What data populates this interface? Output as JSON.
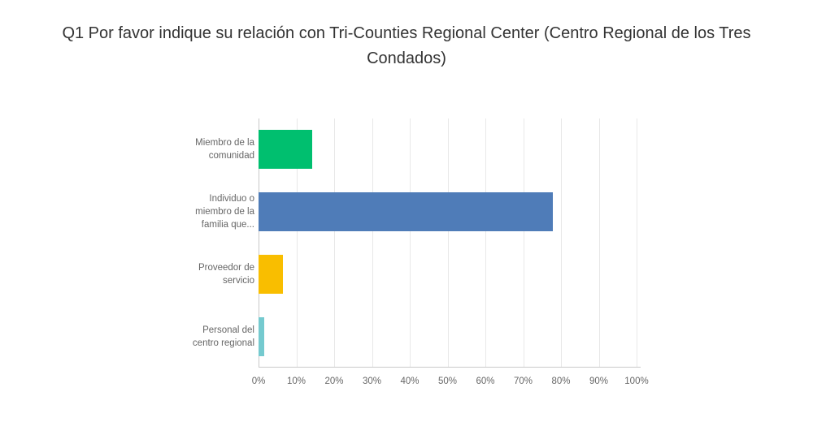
{
  "header": {
    "title": "Q1 Por favor indique su relación con Tri-Counties Regional Center (Centro Regional de los Tres Condados)"
  },
  "colors": {
    "background": "#ffffff",
    "title_text": "#333333",
    "label_text": "#666666",
    "tick_text": "#666666",
    "gridline": "#e8e8e8",
    "axis_line": "#c9c9c9"
  },
  "chart_data": {
    "type": "bar",
    "orientation": "horizontal",
    "title": "Q1 Por favor indique su relación con Tri-Counties Regional Center (Centro Regional de los Tres Condados)",
    "categories": [
      "Miembro de la comunidad",
      "Individuo o miembro de la familia que...",
      "Proveedor de servicio",
      "Personal del centro regional"
    ],
    "values": [
      14.29,
      77.78,
      6.35,
      1.59
    ],
    "bar_colors": [
      "#00BF6F",
      "#4F7CB8",
      "#F9BE00",
      "#75CACF"
    ],
    "x_ticks": [
      "0%",
      "10%",
      "20%",
      "30%",
      "40%",
      "50%",
      "60%",
      "70%",
      "80%",
      "90%",
      "100%"
    ],
    "xlim": [
      0,
      100
    ],
    "grid": true,
    "legend": "none",
    "xlabel": "",
    "ylabel": ""
  }
}
